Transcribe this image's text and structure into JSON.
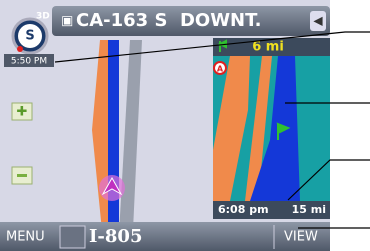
{
  "header": {
    "mode": "3D",
    "heading": "S",
    "clock": "5:50 PM",
    "street": "CA-163 S  DOWNT."
  },
  "panel": {
    "next_distance": "6 mi",
    "marker": "A",
    "arrival": "6:08 pm",
    "remaining": "15 mi"
  },
  "footer": {
    "menu": "MENU",
    "road": "I-805",
    "view": "VIEW"
  }
}
